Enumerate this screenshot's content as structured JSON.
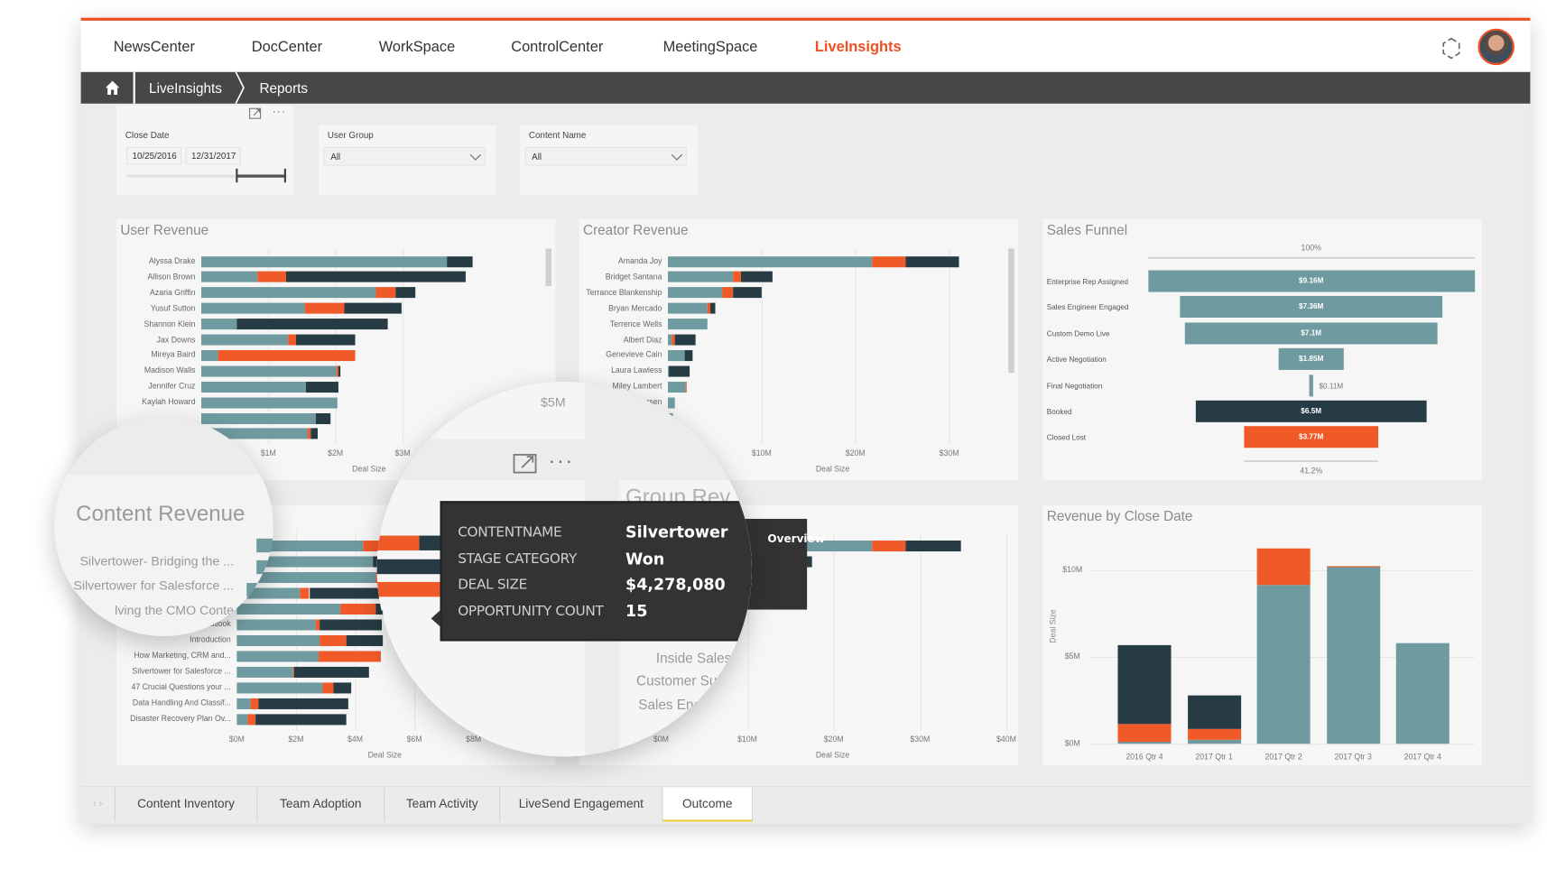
{
  "nav": {
    "items": [
      "NewsCenter",
      "DocCenter",
      "WorkSpace",
      "ControlCenter",
      "MeetingSpace",
      "LiveInsights"
    ],
    "active": "LiveInsights"
  },
  "breadcrumb": {
    "items": [
      "LiveInsights",
      "Reports"
    ]
  },
  "filters": {
    "close_date": {
      "label": "Close Date",
      "from": "10/25/2016",
      "to": "12/31/2017"
    },
    "user_group": {
      "label": "User Group",
      "value": "All"
    },
    "content_name": {
      "label": "Content Name",
      "value": "All"
    }
  },
  "colors": {
    "won": "#6f9ba0",
    "lost": "#f05a28",
    "open": "#263b43",
    "accent": "#f04e23"
  },
  "chart_data": [
    {
      "id": "user_revenue",
      "type": "bar",
      "orientation": "horizontal",
      "stacked": true,
      "title": "User Revenue",
      "xlabel": "Deal Size",
      "ticks": [
        {
          "v": 1,
          "label": "$1M"
        },
        {
          "v": 2,
          "label": "$2M"
        },
        {
          "v": 3,
          "label": "$3M"
        }
      ],
      "categories": [
        "Alyssa Drake",
        "Allison Brown",
        "Azaria Griffin",
        "Yusuf Sutton",
        "Shannon Klein",
        "Jax Downs",
        "Mireya Baird",
        "Madison Walls",
        "Jennifer Cruz",
        "Kaylah Howard",
        "",
        ""
      ],
      "series": [
        {
          "name": "Won",
          "color": "#6f9ba0",
          "values": [
            3.66,
            0.84,
            2.6,
            1.54,
            0.53,
            1.29,
            0.25,
            2.01,
            1.56,
            2.03,
            1.7,
            1.59
          ]
        },
        {
          "name": "Lost",
          "color": "#f05a28",
          "values": [
            0,
            0.42,
            0.3,
            0.59,
            0,
            0.12,
            2.05,
            0.03,
            0,
            0,
            0,
            0.04
          ]
        },
        {
          "name": "Open",
          "color": "#263b43",
          "values": [
            0.39,
            2.68,
            0.29,
            0.85,
            2.25,
            0.89,
            0,
            0.04,
            0.48,
            0,
            0.22,
            0.11
          ]
        }
      ]
    },
    {
      "id": "creator_revenue",
      "type": "bar",
      "orientation": "horizontal",
      "stacked": true,
      "title": "Creator Revenue",
      "xlabel": "Deal Size",
      "ticks": [
        {
          "v": 10,
          "label": "$10M"
        },
        {
          "v": 20,
          "label": "$20M"
        },
        {
          "v": 30,
          "label": "$30M"
        }
      ],
      "categories": [
        "Amanda Joy",
        "Bridget Santana",
        "Terrance Blankenship",
        "Bryan Mercado",
        "Terrence Wells",
        "Albert Diaz",
        "Genevieve Cain",
        "Laura Lawless",
        "Miley Lambert",
        "...rsen",
        ""
      ],
      "series": [
        {
          "name": "Won",
          "color": "#6f9ba0",
          "values": [
            21.8,
            6.9,
            5.8,
            4.2,
            4.2,
            0.4,
            1.8,
            0.1,
            1.9,
            0.7,
            0.5
          ]
        },
        {
          "name": "Lost",
          "color": "#f05a28",
          "values": [
            3.6,
            0.9,
            1.1,
            0.3,
            0,
            0.3,
            0,
            0,
            0.1,
            0,
            0
          ]
        },
        {
          "name": "Open",
          "color": "#263b43",
          "values": [
            5.7,
            3.4,
            3.1,
            0.6,
            0,
            2.2,
            0.8,
            2.2,
            0,
            0,
            0
          ]
        }
      ]
    },
    {
      "id": "sales_funnel",
      "type": "funnel",
      "title": "Sales Funnel",
      "top_label": "100%",
      "bottom_label": "41.2%",
      "stages": [
        {
          "name": "Enterprise Rep Assigned",
          "value": 9.16,
          "label": "$9.16M",
          "color": "#6f9ba0"
        },
        {
          "name": "Sales Engineer Engaged",
          "value": 7.36,
          "label": "$7.36M",
          "color": "#6f9ba0"
        },
        {
          "name": "Custom Demo Live",
          "value": 7.1,
          "label": "$7.1M",
          "color": "#6f9ba0"
        },
        {
          "name": "Active Negotiation",
          "value": 1.85,
          "label": "$1.85M",
          "color": "#6f9ba0"
        },
        {
          "name": "Final Negotiation",
          "value": 0.11,
          "label": "$0.11M",
          "color": "#6f9ba0"
        },
        {
          "name": "Booked",
          "value": 6.5,
          "label": "$6.5M",
          "color": "#263b43"
        },
        {
          "name": "Closed Lost",
          "value": 3.77,
          "label": "$3.77M",
          "color": "#f05a28"
        }
      ]
    },
    {
      "id": "content_revenue",
      "type": "bar",
      "orientation": "horizontal",
      "stacked": true,
      "title": "Content Revenue",
      "xlabel": "Deal Size",
      "ticks": [
        {
          "v": 0,
          "label": "$0M"
        },
        {
          "v": 2,
          "label": "$2M"
        },
        {
          "v": 4,
          "label": "$4M"
        },
        {
          "v": 6,
          "label": "$6M"
        },
        {
          "v": 8,
          "label": "$8M"
        }
      ],
      "categories": [
        "",
        "",
        "",
        "",
        "",
        "...r Outlook",
        "Introduction",
        "How Marketing, CRM and...",
        "Silvertower for Salesforce ...",
        "47 Crucial Questions your ...",
        "Data Handling And Classif...",
        "Disaster Recovery Plan Ov..."
      ],
      "series": [
        {
          "name": "Won",
          "color": "#6f9ba0",
          "values": [
            4.28,
            4.6,
            4.7,
            2.12,
            3.51,
            2.67,
            2.8,
            2.76,
            1.89,
            2.9,
            0.46,
            0.38
          ]
        },
        {
          "name": "Lost",
          "color": "#f05a28",
          "values": [
            0.9,
            0,
            2.3,
            0.33,
            1.2,
            0.14,
            0.89,
            2.1,
            0.03,
            0.36,
            0.26,
            0.25
          ]
        },
        {
          "name": "Open",
          "color": "#263b43",
          "values": [
            0.9,
            2.0,
            0,
            2.5,
            0.8,
            2.08,
            1.25,
            0,
            2.54,
            0.6,
            3.05,
            3.07
          ]
        }
      ]
    },
    {
      "id": "group_revenue",
      "type": "bar",
      "orientation": "horizontal",
      "stacked": true,
      "title": "Group Rev",
      "xlabel": "Deal Size",
      "ticks": [
        {
          "v": 0,
          "label": "$0M"
        },
        {
          "v": 10,
          "label": "$10M"
        },
        {
          "v": 20,
          "label": "$20M"
        },
        {
          "v": 30,
          "label": "$30M"
        },
        {
          "v": 40,
          "label": "$40M"
        }
      ],
      "categories": [
        "",
        ""
      ],
      "series": [
        {
          "name": "Won",
          "color": "#6f9ba0",
          "values": [
            24.4,
            12
          ]
        },
        {
          "name": "Lost",
          "color": "#f05a28",
          "values": [
            3.9,
            2
          ]
        },
        {
          "name": "Open",
          "color": "#263b43",
          "values": [
            6.4,
            3.5
          ]
        }
      ]
    },
    {
      "id": "revenue_by_close_date",
      "type": "bar",
      "orientation": "vertical",
      "stacked": true,
      "title": "Revenue by Close Date",
      "ylabel": "Deal Size",
      "ylim": [
        0,
        12
      ],
      "ticks": [
        {
          "v": 0,
          "label": "$0M"
        },
        {
          "v": 5,
          "label": "$5M"
        },
        {
          "v": 10,
          "label": "$10M"
        }
      ],
      "categories": [
        "2016 Qtr 4",
        "2017 Qtr 1",
        "2017 Qtr 2",
        "2017 Qtr 3",
        "2017 Qtr 4"
      ],
      "series": [
        {
          "name": "Won",
          "color": "#6f9ba0",
          "values": [
            0.14,
            0.2,
            9.14,
            10.2,
            5.8
          ]
        },
        {
          "name": "Lost",
          "color": "#f05a28",
          "values": [
            0.98,
            0.66,
            2.1,
            0.05,
            0
          ]
        },
        {
          "name": "Open",
          "color": "#263b43",
          "values": [
            4.57,
            1.9,
            0,
            0,
            0
          ]
        }
      ]
    }
  ],
  "magnifier": {
    "content_title": "Content Revenue",
    "content_labels": [
      "Silvertower- Bridging the ...",
      "Silvertower for Salesforce ...",
      "lving the CMO Conte"
    ],
    "group_title": "Group Rev",
    "group_labels": [
      "Inside Sales",
      "Customer Su",
      "Sales Enc"
    ],
    "axis_value": "$5M"
  },
  "tooltip": {
    "rows": [
      {
        "label": "CONTENTNAME",
        "value": "Silvertower"
      },
      {
        "label": "STAGE CATEGORY",
        "value": "Won"
      },
      {
        "label": "DEAL SIZE",
        "value": "$4,278,080"
      },
      {
        "label": "OPPORTUNITY COUNT",
        "value": "15"
      }
    ],
    "overflow_text": "Overview"
  },
  "tabs": {
    "items": [
      "Content Inventory",
      "Team Adoption",
      "Team Activity",
      "LiveSend Engagement",
      "Outcome"
    ],
    "active": "Outcome"
  }
}
